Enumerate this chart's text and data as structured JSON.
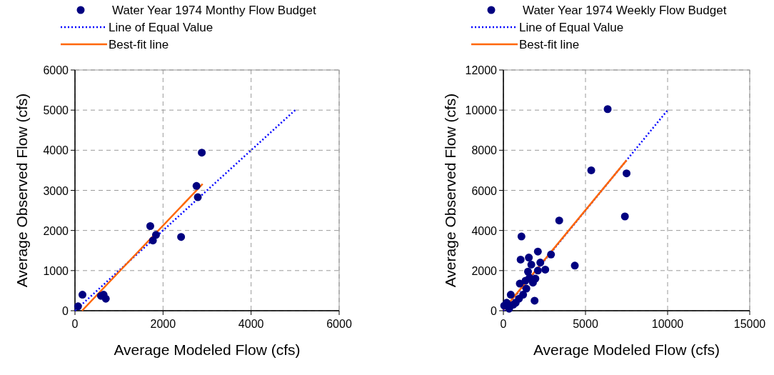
{
  "chart_data": [
    {
      "type": "scatter",
      "xlabel": "Average Modeled Flow (cfs)",
      "ylabel": "Average Observed Flow (cfs)",
      "xlim": [
        0,
        6000
      ],
      "xticks": [
        0,
        2000,
        4000,
        6000
      ],
      "ylim": [
        0,
        6000
      ],
      "yticks": [
        0,
        1000,
        2000,
        3000,
        4000,
        5000,
        6000
      ],
      "grid": true,
      "legend": "top",
      "series": [
        {
          "name": "Water Year 1974 Monthy Flow Budget",
          "marker": "circle",
          "color": "#000080",
          "x": [
            70,
            170,
            590,
            650,
            700,
            1710,
            1770,
            1840,
            2410,
            2760,
            2790,
            2880
          ],
          "values": [
            110,
            400,
            370,
            400,
            300,
            2110,
            1750,
            1890,
            1840,
            3110,
            2830,
            3940
          ]
        },
        {
          "name": "Line of Equal Value",
          "type": "line",
          "marker": "none",
          "line_style": "dotted",
          "color": "#0000ff",
          "x": [
            0,
            5000
          ],
          "values": [
            0,
            5000
          ]
        },
        {
          "name": "Best-fit line",
          "type": "line",
          "marker": "none",
          "line_style": "solid",
          "color": "#ff6600",
          "x": [
            160,
            2900
          ],
          "values": [
            0,
            3160
          ]
        }
      ]
    },
    {
      "type": "scatter",
      "xlabel": "Average Modeled Flow (cfs)",
      "ylabel": "Average Observed Flow (cfs)",
      "xlim": [
        0,
        15000
      ],
      "xticks": [
        0,
        5000,
        10000,
        15000
      ],
      "ylim": [
        0,
        12000
      ],
      "yticks": [
        0,
        2000,
        4000,
        6000,
        8000,
        10000,
        12000
      ],
      "grid": true,
      "legend": "top",
      "series": [
        {
          "name": "Water Year 1974 Weekly Flow Budget",
          "marker": "circle",
          "color": "#000080",
          "x": [
            6350,
            5350,
            7500,
            7400,
            3400,
            4350,
            1100,
            1050,
            1550,
            2100,
            1700,
            2250,
            2900,
            2550,
            1500,
            2100,
            1950,
            1800,
            1000,
            1400,
            1900,
            1200,
            450,
            950,
            750,
            600,
            200,
            50,
            350,
            1350,
            1600
          ],
          "values": [
            10050,
            7000,
            6850,
            4700,
            4500,
            2250,
            3700,
            2550,
            2650,
            2950,
            2300,
            2400,
            2800,
            2050,
            1950,
            2000,
            1600,
            1400,
            1350,
            1100,
            500,
            800,
            800,
            600,
            400,
            300,
            400,
            250,
            100,
            1500,
            1650
          ]
        },
        {
          "name": "Line of Equal Value",
          "type": "line",
          "marker": "none",
          "line_style": "dotted",
          "color": "#0000ff",
          "x": [
            0,
            10000
          ],
          "values": [
            0,
            10000
          ]
        },
        {
          "name": "Best-fit line",
          "type": "line",
          "marker": "none",
          "line_style": "solid",
          "color": "#ff6600",
          "x": [
            0,
            7500
          ],
          "values": [
            50,
            7500
          ]
        }
      ]
    }
  ]
}
